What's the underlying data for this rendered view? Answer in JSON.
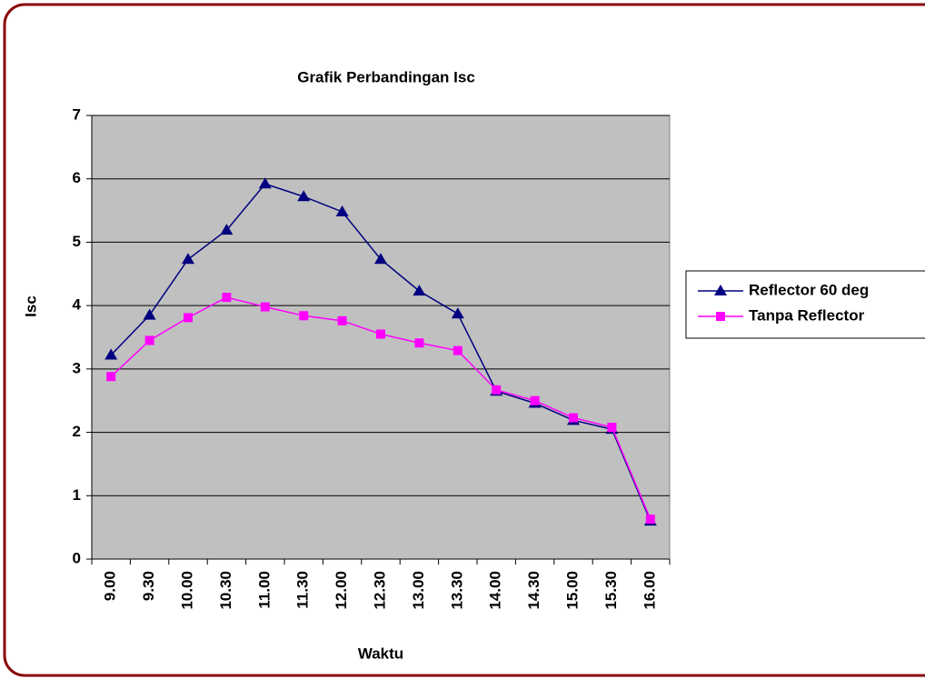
{
  "chart_data": {
    "type": "line",
    "title": "Grafik Perbandingan Isc",
    "x_label": "Waktu",
    "y_label": "Isc",
    "categories": [
      "9.00",
      "9.30",
      "10.00",
      "10.30",
      "11.00",
      "11.30",
      "12.00",
      "12.30",
      "13.00",
      "13.30",
      "14.00",
      "14.30",
      "15.00",
      "15.30",
      "16.00"
    ],
    "series": [
      {
        "name": "Reflector 60 deg",
        "color": "#000080",
        "marker": "triangle",
        "values": [
          3.22,
          3.85,
          4.73,
          5.19,
          5.92,
          5.72,
          5.48,
          4.73,
          4.23,
          3.87,
          2.65,
          2.46,
          2.19,
          2.05,
          0.6
        ]
      },
      {
        "name": "Tanpa Reflector",
        "color": "#ff00ff",
        "marker": "square",
        "values": [
          2.88,
          3.45,
          3.81,
          4.13,
          3.98,
          3.84,
          3.76,
          3.55,
          3.41,
          3.29,
          2.67,
          2.5,
          2.23,
          2.08,
          0.63
        ]
      }
    ],
    "ylim": [
      0,
      7
    ],
    "yticks": [
      0,
      1,
      2,
      3,
      4,
      5,
      6,
      7
    ],
    "grid": true,
    "legend": "right"
  }
}
